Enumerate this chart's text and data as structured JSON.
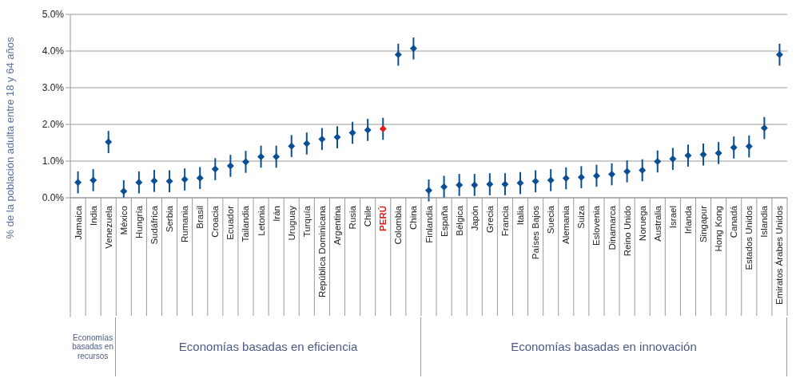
{
  "chart_data": {
    "type": "scatter",
    "ylabel": "% de la población adulta entre 18 y 64 años",
    "categories": [
      "Jamaica",
      "India",
      "Venezuela",
      "México",
      "Hungría",
      "Sudáfrica",
      "Serbia",
      "Rumania",
      "Brasil",
      "Croacia",
      "Ecuador",
      "Tailandia",
      "Letonia",
      "Irán",
      "Uruguay",
      "Turquía",
      "República Dominicana",
      "Argentina",
      "Rusia",
      "Chile",
      "PERÚ",
      "Colombia",
      "China",
      "Finlandia",
      "España",
      "Bélgica",
      "Japón",
      "Grecia",
      "Francia",
      "Italia",
      "Países Bajos",
      "Suecia",
      "Alemania",
      "Suiza",
      "Eslovenia",
      "Dinamarca",
      "Reino Unido",
      "Noruega",
      "Australia",
      "Israel",
      "Irlanda",
      "Singapur",
      "Hong Kong",
      "Canadá",
      "Estados Unidos",
      "Islandia",
      "Emiratos Árabes Unidos"
    ],
    "values": [
      0.42,
      0.48,
      1.52,
      0.18,
      0.42,
      0.46,
      0.45,
      0.5,
      0.54,
      0.78,
      0.87,
      0.98,
      1.12,
      1.12,
      1.41,
      1.48,
      1.6,
      1.65,
      1.77,
      1.85,
      1.88,
      3.9,
      4.07,
      0.2,
      0.3,
      0.35,
      0.35,
      0.37,
      0.37,
      0.4,
      0.45,
      0.48,
      0.53,
      0.56,
      0.6,
      0.64,
      0.72,
      0.75,
      0.99,
      1.06,
      1.15,
      1.18,
      1.22,
      1.37,
      1.4,
      1.9,
      3.9
    ],
    "errors": [
      0.3,
      0.3,
      0.3,
      [
        0,
        0.48
      ],
      0.3,
      0.3,
      0.3,
      0.3,
      0.3,
      0.3,
      0.3,
      0.3,
      0.3,
      0.3,
      0.3,
      0.3,
      0.3,
      0.3,
      0.3,
      0.3,
      0.3,
      0.3,
      0.3,
      0.3,
      0.3,
      0.3,
      0.3,
      0.3,
      0.3,
      0.3,
      0.3,
      0.3,
      0.3,
      0.3,
      0.3,
      0.3,
      0.3,
      0.3,
      0.3,
      0.3,
      0.3,
      0.3,
      0.3,
      0.3,
      0.3,
      0.3,
      0.3
    ],
    "colors": [
      "#0a4f96",
      "#0a4f96",
      "#0a4f96",
      "#0a4f96",
      "#0a4f96",
      "#0a4f96",
      "#0a4f96",
      "#0a4f96",
      "#0a4f96",
      "#0a4f96",
      "#0a4f96",
      "#0a4f96",
      "#0a4f96",
      "#0a4f96",
      "#0a4f96",
      "#0a4f96",
      "#0a4f96",
      "#0a4f96",
      "#0a4f96",
      "#0a4f96",
      "#e0201b",
      "#0a4f96",
      "#0a4f96",
      "#0a4f96",
      "#0a4f96",
      "#0a4f96",
      "#0a4f96",
      "#0a4f96",
      "#0a4f96",
      "#0a4f96",
      "#0a4f96",
      "#0a4f96",
      "#0a4f96",
      "#0a4f96",
      "#0a4f96",
      "#0a4f96",
      "#0a4f96",
      "#0a4f96",
      "#0a4f96",
      "#0a4f96",
      "#0a4f96",
      "#0a4f96",
      "#0a4f96",
      "#0a4f96",
      "#0a4f96",
      "#0a4f96",
      "#0a4f96"
    ],
    "ylim": [
      0,
      5
    ],
    "yticks": [
      {
        "value": 0,
        "label": "0.0%"
      },
      {
        "value": 1,
        "label": "1.0%"
      },
      {
        "value": 2,
        "label": "2.0%"
      },
      {
        "value": 3,
        "label": "3.0%"
      },
      {
        "value": 4,
        "label": "4.0%"
      },
      {
        "value": 5,
        "label": "5.0%"
      }
    ],
    "grid": "y",
    "marker": "diamond",
    "annotations": [
      "Economías basadas en recursos",
      "Economías basadas en eficiencia",
      "Economías basadas en innovación"
    ]
  }
}
